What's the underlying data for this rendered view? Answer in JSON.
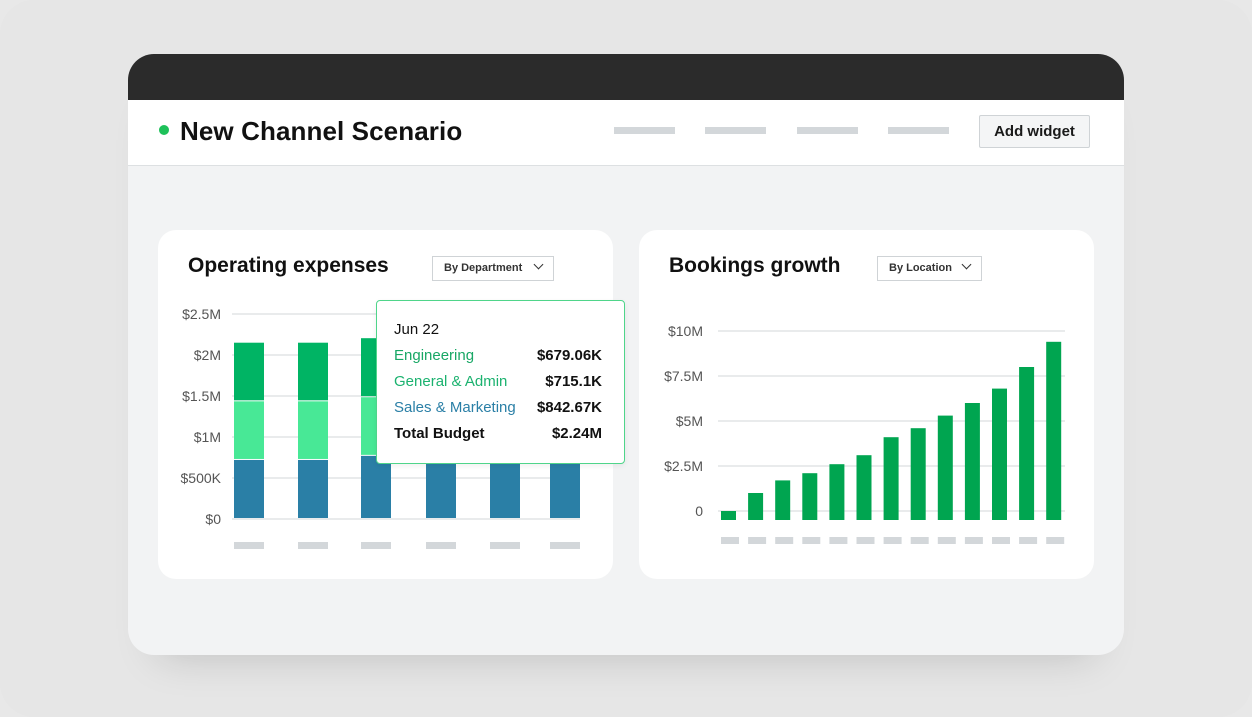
{
  "header": {
    "title": "New Channel Scenario",
    "add_widget_label": "Add widget"
  },
  "colors": {
    "engineering": "#00b464",
    "general_admin": "#48e896",
    "sales_marketing": "#2a7fa6",
    "bookings_bar": "#00a550",
    "status_dot": "#1ec15a"
  },
  "operating_expenses": {
    "title": "Operating expenses",
    "filter": "By Department",
    "tooltip": {
      "date": "Jun 22",
      "rows": [
        {
          "label": "Engineering",
          "value": "$679.06K",
          "color": "#18a765"
        },
        {
          "label": "General & Admin",
          "value": "$715.1K",
          "color": "#1bb26f"
        },
        {
          "label": "Sales & Marketing",
          "value": "$842.67K",
          "color": "#2a7fa6"
        },
        {
          "label": "Total Budget",
          "value": "$2.24M",
          "color": "#111111"
        }
      ]
    }
  },
  "bookings_growth": {
    "title": "Bookings growth",
    "filter": "By Location"
  },
  "chart_data": [
    {
      "type": "bar",
      "stacked": true,
      "title": "Operating expenses",
      "y_tick_labels": [
        "$0",
        "$500K",
        "$1M",
        "$1.5M",
        "$2M",
        "$2.5M"
      ],
      "ylim": [
        0,
        2500000
      ],
      "series": [
        {
          "name": "Sales & Marketing",
          "color": "#2a7fa6",
          "values": [
            720000,
            720000,
            770000,
            720000,
            720000,
            720000
          ]
        },
        {
          "name": "General & Admin",
          "color": "#48e896",
          "values": [
            715000,
            715000,
            715000,
            0,
            0,
            0
          ]
        },
        {
          "name": "Engineering",
          "color": "#00b464",
          "values": [
            715000,
            715000,
            720000,
            0,
            0,
            0
          ]
        }
      ],
      "grid": true
    },
    {
      "type": "bar",
      "title": "Bookings growth",
      "y_tick_labels": [
        "0",
        "$2.5M",
        "$5M",
        "$7.5M",
        "$10M"
      ],
      "ylim": [
        0,
        10000000
      ],
      "values": [
        500000,
        1500000,
        2200000,
        2600000,
        3100000,
        3600000,
        4600000,
        5100000,
        5800000,
        6500000,
        7300000,
        8500000,
        9900000
      ],
      "color": "#00a550",
      "grid": true
    }
  ]
}
